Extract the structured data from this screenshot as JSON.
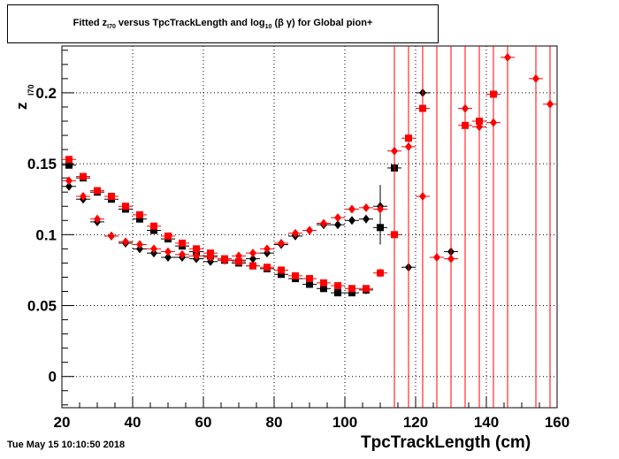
{
  "title": {
    "prefix": "Fitted  z",
    "sub1": "I70",
    "middle": "  versus TpcTrackLength and log",
    "sub2": "10",
    "suffix": " (β γ) for Global pion+"
  },
  "timestamp": "Tue May 15 10:10:50 2018",
  "chart_data": {
    "type": "scatter",
    "title": "Fitted z_I70 versus TpcTrackLength and log10 (β γ) for Global pion+",
    "xlabel": "TpcTrackLength (cm)",
    "ylabel_main": "z",
    "ylabel_sub": "I70",
    "xlim": [
      20,
      160
    ],
    "ylim": [
      -0.022,
      0.233
    ],
    "x_ticks": [
      "20",
      "40",
      "60",
      "80",
      "100",
      "120",
      "140",
      "160"
    ],
    "y_ticks": [
      "0",
      "0.05",
      "0.1",
      "0.15",
      "0.2"
    ],
    "grid": true,
    "series": [
      {
        "color": "#000000",
        "marker": "square",
        "x": [
          22,
          26,
          30,
          34,
          38,
          42,
          46,
          50,
          54,
          58,
          62,
          66,
          70,
          74,
          78,
          82,
          86,
          90,
          94,
          98,
          102,
          106,
          110,
          114
        ],
        "y": [
          0.149,
          0.14,
          0.13,
          0.125,
          0.118,
          0.111,
          0.103,
          0.097,
          0.092,
          0.088,
          0.085,
          0.082,
          0.08,
          0.078,
          0.076,
          0.072,
          0.069,
          0.065,
          0.062,
          0.059,
          0.059,
          0.061,
          0.105,
          0.147
        ],
        "yerr": [
          0.001,
          0.001,
          0.001,
          0.001,
          0.001,
          0.001,
          0.001,
          0.001,
          0.001,
          0.001,
          0.001,
          0.001,
          0.001,
          0.001,
          0.001,
          0.001,
          0.001,
          0.001,
          0.001,
          0.001,
          0.002,
          0.003,
          0.012,
          0.06
        ]
      },
      {
        "color": "#000000",
        "marker": "diamond",
        "x": [
          22,
          26,
          30,
          34,
          38,
          42,
          46,
          50,
          54,
          58,
          62,
          66,
          70,
          74,
          78,
          82,
          86,
          90,
          94,
          98,
          102,
          106,
          110,
          118,
          122,
          130
        ],
        "y": [
          0.134,
          0.125,
          0.109,
          0.099,
          0.094,
          0.09,
          0.087,
          0.084,
          0.084,
          0.083,
          0.081,
          0.082,
          0.082,
          0.083,
          0.087,
          0.093,
          0.099,
          0.103,
          0.107,
          0.107,
          0.11,
          0.111,
          0.12,
          0.077,
          0.2,
          0.088
        ],
        "yerr": [
          0.001,
          0.001,
          0.001,
          0.001,
          0.001,
          0.001,
          0.001,
          0.001,
          0.001,
          0.001,
          0.001,
          0.001,
          0.001,
          0.001,
          0.001,
          0.001,
          0.001,
          0.001,
          0.001,
          0.002,
          0.002,
          0.003,
          0.015,
          0.3,
          0.3,
          0.3
        ]
      },
      {
        "color": "#ff0000",
        "marker": "square",
        "x": [
          22,
          26,
          30,
          34,
          38,
          42,
          46,
          50,
          54,
          58,
          62,
          66,
          70,
          74,
          78,
          82,
          86,
          90,
          94,
          98,
          102,
          106,
          110,
          114,
          118,
          122,
          134,
          138,
          142
        ],
        "y": [
          0.153,
          0.141,
          0.131,
          0.127,
          0.12,
          0.114,
          0.106,
          0.099,
          0.094,
          0.09,
          0.087,
          0.083,
          0.081,
          0.078,
          0.077,
          0.075,
          0.071,
          0.069,
          0.066,
          0.064,
          0.062,
          0.062,
          0.073,
          0.1,
          0.168,
          0.189,
          0.177,
          0.18,
          0.199
        ],
        "yerr": [
          0.001,
          0.001,
          0.001,
          0.001,
          0.001,
          0.001,
          0.001,
          0.001,
          0.001,
          0.001,
          0.001,
          0.001,
          0.001,
          0.001,
          0.001,
          0.001,
          0.001,
          0.001,
          0.001,
          0.001,
          0.002,
          0.002,
          0.003,
          0.3,
          0.3,
          0.3,
          0.3,
          0.3,
          0.3
        ]
      },
      {
        "color": "#ff0000",
        "marker": "diamond",
        "x": [
          22,
          26,
          30,
          34,
          38,
          42,
          46,
          50,
          54,
          58,
          62,
          66,
          70,
          74,
          78,
          82,
          86,
          90,
          94,
          98,
          102,
          106,
          110,
          114,
          118,
          122,
          126,
          130,
          134,
          138,
          142,
          146,
          154,
          158
        ],
        "y": [
          0.138,
          0.127,
          0.111,
          0.099,
          0.095,
          0.093,
          0.09,
          0.088,
          0.086,
          0.085,
          0.084,
          0.082,
          0.085,
          0.087,
          0.09,
          0.094,
          0.101,
          0.103,
          0.108,
          0.112,
          0.118,
          0.119,
          0.118,
          0.159,
          0.162,
          0.127,
          0.084,
          0.083,
          0.189,
          0.176,
          0.179,
          0.225,
          0.21,
          0.192
        ],
        "yerr": [
          0.001,
          0.001,
          0.001,
          0.001,
          0.001,
          0.001,
          0.001,
          0.001,
          0.001,
          0.001,
          0.001,
          0.001,
          0.001,
          0.001,
          0.001,
          0.001,
          0.001,
          0.001,
          0.001,
          0.001,
          0.002,
          0.002,
          0.003,
          0.3,
          0.3,
          0.3,
          0.3,
          0.3,
          0.3,
          0.3,
          0.3,
          0.3,
          0.3,
          0.3
        ]
      }
    ]
  }
}
